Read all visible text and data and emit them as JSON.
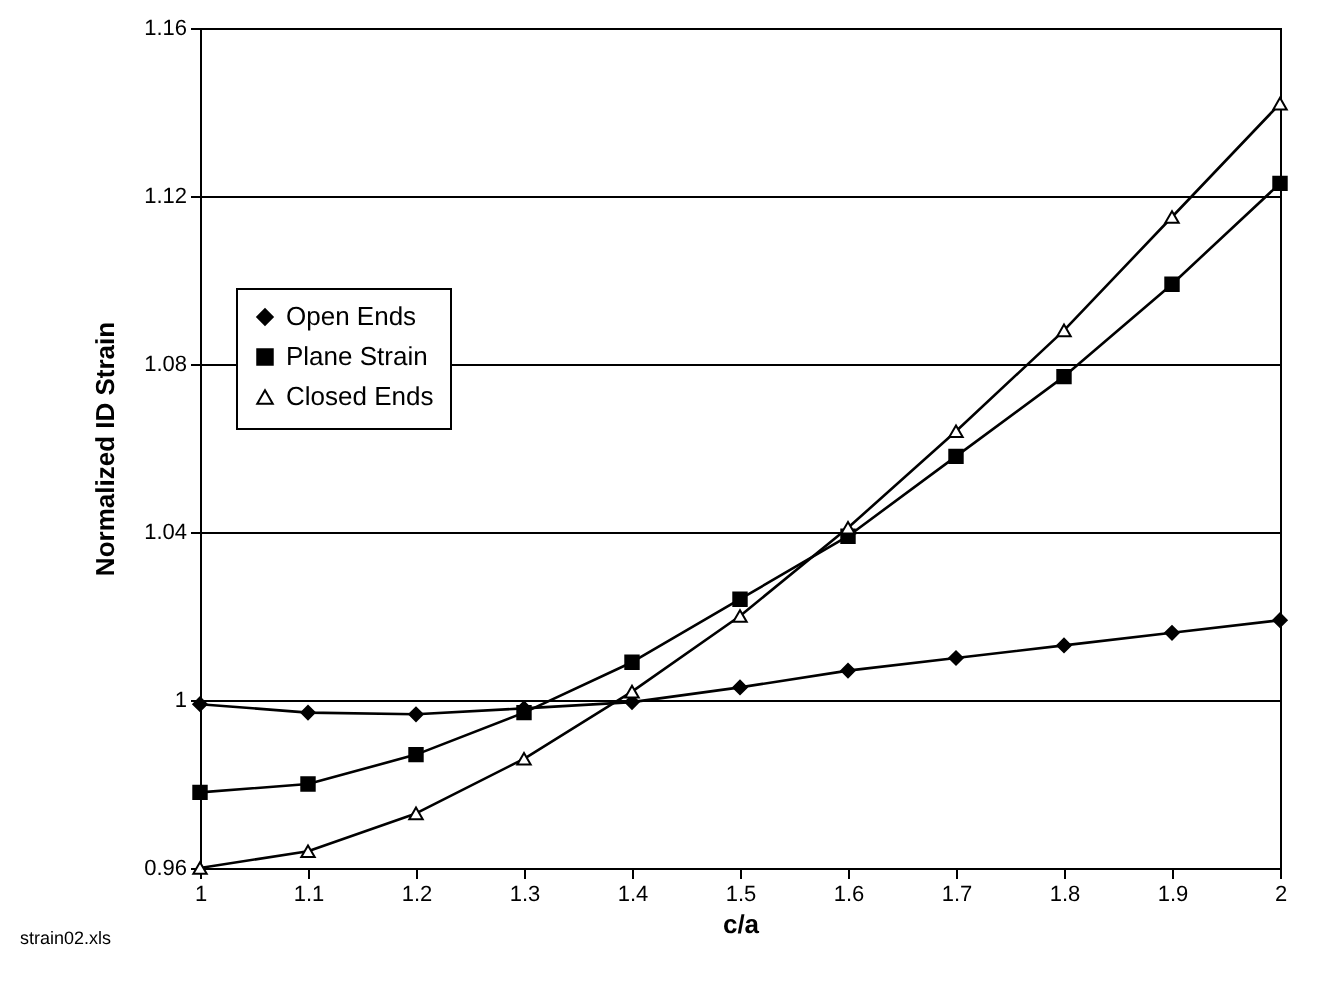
{
  "chart_data": {
    "type": "line",
    "xlabel": "c/a",
    "ylabel": "Normalized ID Strain",
    "annotations": [
      "strain02.xls"
    ],
    "x": [
      1,
      1.1,
      1.2,
      1.3,
      1.4,
      1.5,
      1.6,
      1.7,
      1.8,
      1.9,
      2
    ],
    "xlim": [
      1,
      2
    ],
    "xticks": [
      1,
      1.1,
      1.2,
      1.3,
      1.4,
      1.5,
      1.6,
      1.7,
      1.8,
      1.9,
      2
    ],
    "ylim": [
      0.96,
      1.16
    ],
    "yticks": [
      0.96,
      1,
      1.04,
      1.08,
      1.12,
      1.16
    ],
    "grid": "y",
    "legend": "left",
    "series": [
      {
        "name": "Open Ends",
        "color": "#000000",
        "marker": "diamond",
        "values": [
          0.999,
          0.997,
          0.9966,
          0.998,
          0.9995,
          1.003,
          1.007,
          1.01,
          1.013,
          1.016,
          1.019
        ]
      },
      {
        "name": "Plane Strain",
        "color": "#000000",
        "marker": "square",
        "values": [
          0.978,
          0.98,
          0.987,
          0.997,
          1.009,
          1.024,
          1.039,
          1.058,
          1.077,
          1.099,
          1.123
        ]
      },
      {
        "name": "Closed Ends",
        "color": "#000000",
        "marker": "triangle",
        "values": [
          0.96,
          0.964,
          0.973,
          0.986,
          1.002,
          1.02,
          1.041,
          1.064,
          1.088,
          1.115,
          1.142
        ]
      }
    ]
  }
}
